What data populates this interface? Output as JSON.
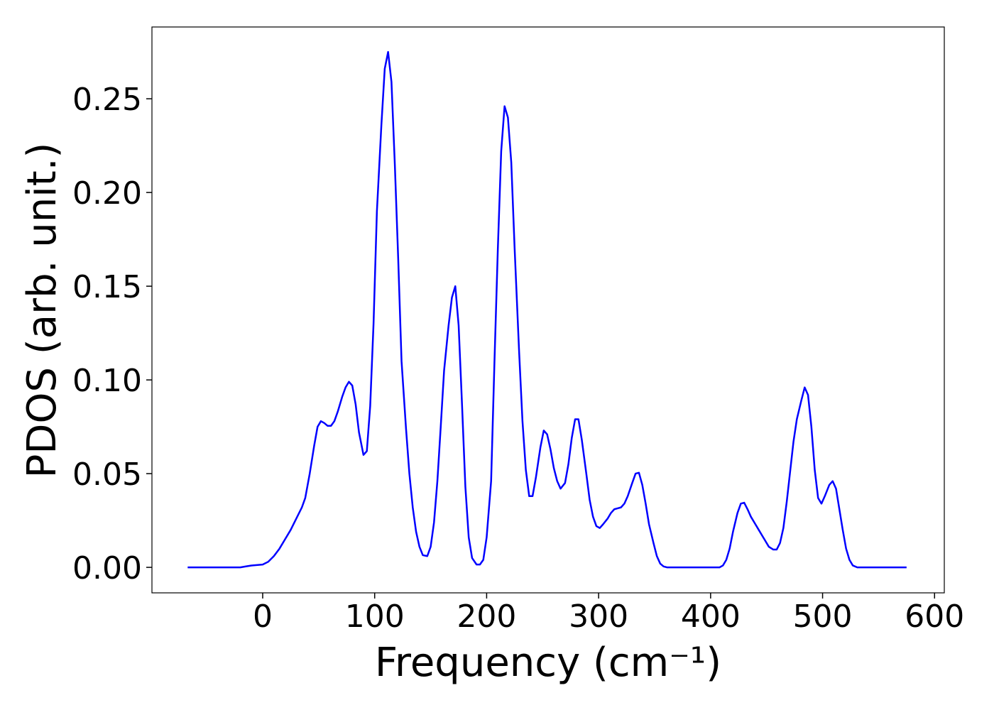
{
  "chart_data": {
    "type": "line",
    "x_label": "Frequency (cm⁻¹)",
    "y_label": "PDOS (arb. unit.)",
    "x": [
      -67,
      -20,
      -15,
      -10,
      0,
      5,
      10,
      15,
      20,
      25,
      30,
      35,
      38,
      42,
      46,
      49,
      52,
      55,
      58,
      61,
      64,
      67,
      71,
      74,
      77,
      80,
      83,
      86,
      90,
      93,
      96,
      99,
      102,
      106,
      109,
      112,
      115,
      118,
      121,
      124,
      128,
      131,
      134,
      137,
      140,
      143,
      147,
      150,
      153,
      156,
      159,
      162,
      166,
      169,
      172,
      175,
      178,
      181,
      184,
      187,
      191,
      194,
      197,
      200,
      204,
      207,
      210,
      213,
      216,
      219,
      222,
      225,
      229,
      232,
      235,
      238,
      241,
      244,
      248,
      251,
      254,
      257,
      260,
      263,
      266,
      270,
      273,
      276,
      279,
      282,
      285,
      289,
      292,
      295,
      298,
      301,
      304,
      308,
      311,
      314,
      317,
      320,
      323,
      326,
      330,
      333,
      336,
      339,
      342,
      345,
      349,
      352,
      355,
      358,
      361,
      400,
      408,
      411,
      414,
      417,
      420,
      424,
      427,
      430,
      433,
      436,
      440,
      443,
      446,
      449,
      452,
      456,
      459,
      462,
      465,
      468,
      471,
      474,
      477,
      481,
      484,
      487,
      490,
      493,
      496,
      499,
      502,
      506,
      509,
      512,
      515,
      518,
      521,
      524,
      527,
      531,
      575
    ],
    "series": [
      {
        "name": "PDOS",
        "color": "#0000ff",
        "values": [
          0,
          0,
          0.0005,
          0.001,
          0.0015,
          0.003,
          0.006,
          0.01,
          0.015,
          0.02,
          0.026,
          0.032,
          0.037,
          0.05,
          0.065,
          0.075,
          0.078,
          0.077,
          0.0755,
          0.0755,
          0.078,
          0.083,
          0.091,
          0.096,
          0.099,
          0.097,
          0.087,
          0.072,
          0.06,
          0.062,
          0.086,
          0.13,
          0.19,
          0.236,
          0.266,
          0.275,
          0.259,
          0.215,
          0.165,
          0.11,
          0.074,
          0.05,
          0.032,
          0.019,
          0.011,
          0.0065,
          0.006,
          0.011,
          0.024,
          0.046,
          0.075,
          0.105,
          0.129,
          0.144,
          0.15,
          0.129,
          0.087,
          0.043,
          0.016,
          0.005,
          0.0015,
          0.0015,
          0.004,
          0.016,
          0.046,
          0.11,
          0.17,
          0.222,
          0.246,
          0.24,
          0.216,
          0.17,
          0.115,
          0.078,
          0.052,
          0.038,
          0.038,
          0.048,
          0.064,
          0.073,
          0.071,
          0.063,
          0.053,
          0.046,
          0.042,
          0.045,
          0.055,
          0.069,
          0.079,
          0.079,
          0.068,
          0.05,
          0.036,
          0.027,
          0.022,
          0.021,
          0.023,
          0.026,
          0.029,
          0.031,
          0.0315,
          0.032,
          0.034,
          0.038,
          0.045,
          0.05,
          0.0505,
          0.044,
          0.034,
          0.023,
          0.013,
          0.006,
          0.002,
          0.0005,
          0,
          0,
          0,
          0.001,
          0.004,
          0.01,
          0.019,
          0.029,
          0.034,
          0.0345,
          0.031,
          0.027,
          0.023,
          0.02,
          0.017,
          0.014,
          0.011,
          0.0095,
          0.0095,
          0.013,
          0.021,
          0.035,
          0.051,
          0.067,
          0.079,
          0.089,
          0.096,
          0.092,
          0.075,
          0.052,
          0.037,
          0.034,
          0.038,
          0.044,
          0.046,
          0.042,
          0.031,
          0.02,
          0.01,
          0.004,
          0.001,
          0,
          0
        ]
      }
    ],
    "xlim": [
      -98.9,
      608.7
    ],
    "ylim": [
      -0.0136,
      0.2883
    ],
    "xticks": [
      0,
      100,
      200,
      300,
      400,
      500,
      600
    ],
    "yticks": [
      {
        "value": 0,
        "label": "0.00"
      },
      {
        "value": 0.05,
        "label": "0.05"
      },
      {
        "value": 0.1,
        "label": "0.10"
      },
      {
        "value": 0.15,
        "label": "0.15"
      },
      {
        "value": 0.2,
        "label": "0.20"
      },
      {
        "value": 0.25,
        "label": "0.25"
      }
    ]
  }
}
